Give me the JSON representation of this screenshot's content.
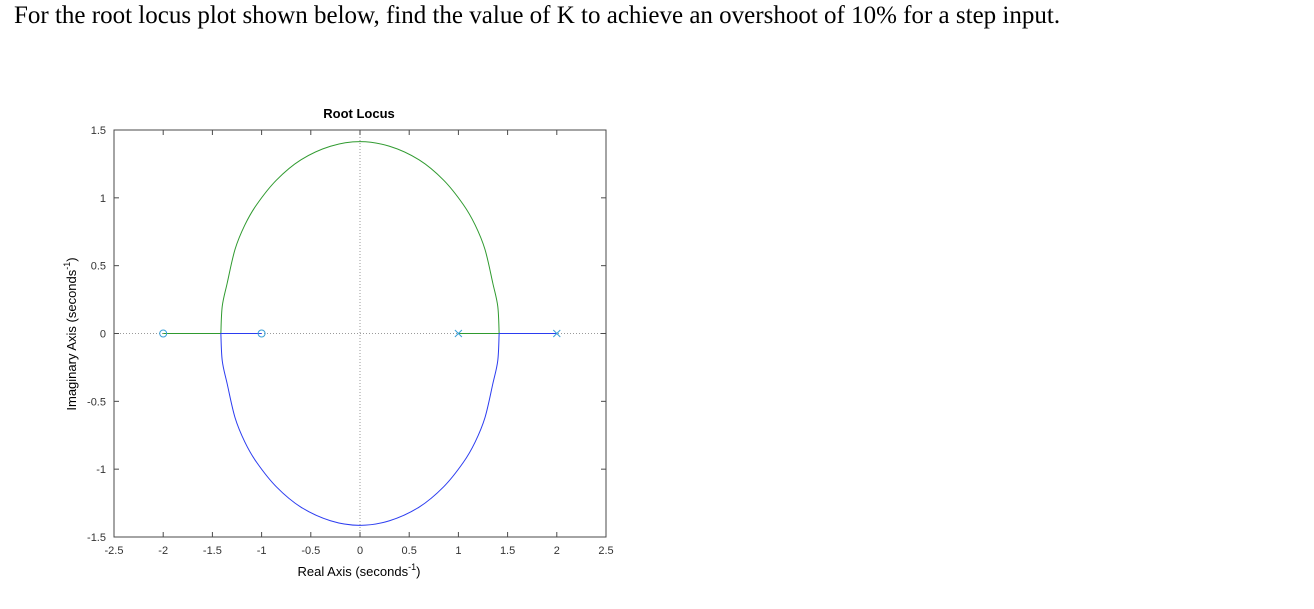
{
  "question": {
    "text": "For the root locus plot shown below, find the value of K to achieve an overshoot of 10% for a step input."
  },
  "chart_data": {
    "type": "line",
    "title": "Root Locus",
    "xlabel": "Real Axis (seconds",
    "xlabel_sup": "-1",
    "xlabel_end": ")",
    "ylabel": "Imaginary Axis (seconds",
    "ylabel_sup": "-1",
    "ylabel_end": ")",
    "xlim": [
      -2.5,
      2.5
    ],
    "ylim": [
      -1.5,
      1.5
    ],
    "xticks": [
      -2.5,
      -2,
      -1.5,
      -1,
      -0.5,
      0,
      0.5,
      1,
      1.5,
      2,
      2.5
    ],
    "xtick_labels": [
      "-2.5",
      "-2",
      "-1.5",
      "-1",
      "-0.5",
      "0",
      "0.5",
      "1",
      "1.5",
      "2",
      "2.5"
    ],
    "yticks": [
      1.5,
      1,
      0.5,
      0,
      -0.5,
      -1,
      -1.5
    ],
    "ytick_labels": [
      "1.5",
      "1",
      "0.5",
      "0",
      "-0.5",
      "-1",
      "-1.5"
    ],
    "grid": false,
    "colors": {
      "branch_green": "#2f9a2f",
      "branch_blue": "#2b3cf0",
      "marker": "#3aa0d8",
      "axis_dotted": "#9a9a9a",
      "frame": "#4a4a4a"
    },
    "poles": [
      {
        "re": 1,
        "im": 0
      },
      {
        "re": 2,
        "im": 0
      }
    ],
    "zeros": [
      {
        "re": -2,
        "im": 0
      },
      {
        "re": -1,
        "im": 0
      }
    ],
    "breakaway": {
      "re": 1.414,
      "im": 0
    },
    "breakin": {
      "re": -1.414,
      "im": 0
    },
    "branches": [
      {
        "color": "green",
        "points": [
          [
            1,
            0
          ],
          [
            1.414,
            0
          ],
          [
            1.4,
            0.2
          ],
          [
            1.35,
            0.37
          ],
          [
            1.27,
            0.62
          ],
          [
            1.17,
            0.8
          ],
          [
            1.05,
            0.95
          ],
          [
            0.85,
            1.13
          ],
          [
            0.6,
            1.28
          ],
          [
            0.3,
            1.38
          ],
          [
            0,
            1.414
          ],
          [
            -0.3,
            1.38
          ],
          [
            -0.6,
            1.28
          ],
          [
            -0.85,
            1.13
          ],
          [
            -1.05,
            0.95
          ],
          [
            -1.17,
            0.8
          ],
          [
            -1.27,
            0.62
          ],
          [
            -1.35,
            0.37
          ],
          [
            -1.4,
            0.2
          ],
          [
            -1.414,
            0
          ],
          [
            -2,
            0
          ]
        ]
      },
      {
        "color": "blue",
        "points": [
          [
            2,
            0
          ],
          [
            1.414,
            0
          ],
          [
            1.4,
            -0.2
          ],
          [
            1.35,
            -0.37
          ],
          [
            1.27,
            -0.62
          ],
          [
            1.17,
            -0.8
          ],
          [
            1.05,
            -0.95
          ],
          [
            0.85,
            -1.13
          ],
          [
            0.6,
            -1.28
          ],
          [
            0.3,
            -1.38
          ],
          [
            0,
            -1.414
          ],
          [
            -0.3,
            -1.38
          ],
          [
            -0.6,
            -1.28
          ],
          [
            -0.85,
            -1.13
          ],
          [
            -1.05,
            -0.95
          ],
          [
            -1.17,
            -0.8
          ],
          [
            -1.27,
            -0.62
          ],
          [
            -1.35,
            -0.37
          ],
          [
            -1.4,
            -0.2
          ],
          [
            -1.414,
            0
          ],
          [
            -1,
            0
          ]
        ]
      }
    ]
  }
}
